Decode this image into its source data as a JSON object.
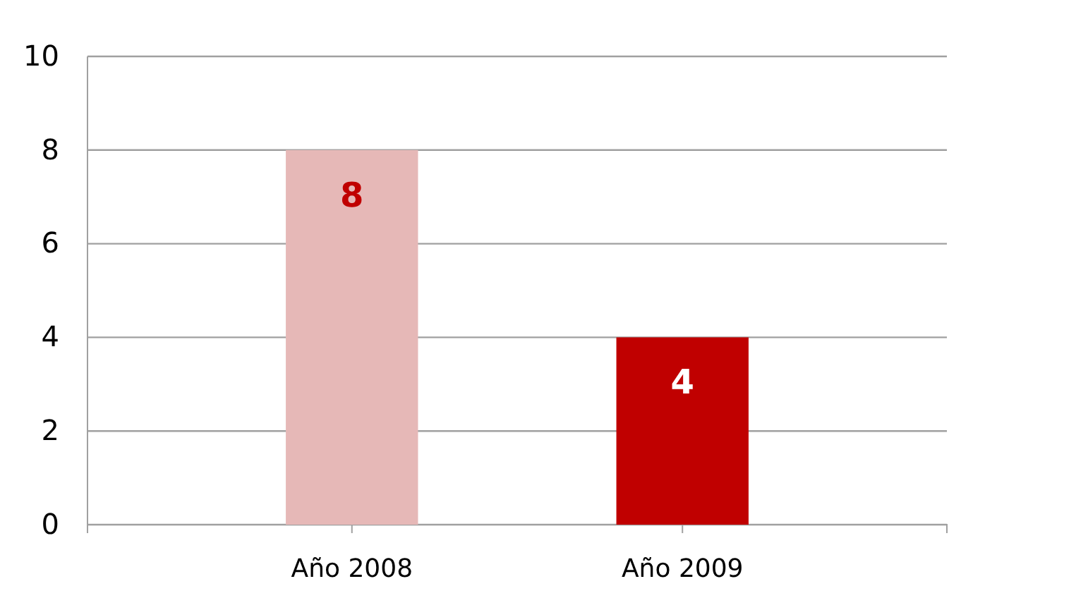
{
  "chart_data": {
    "type": "bar",
    "categories": [
      "Año 2008",
      "Año 2009"
    ],
    "values": [
      8,
      4
    ],
    "colors": [
      "#e6b8b7",
      "#c00000"
    ],
    "ylim": [
      0,
      10
    ],
    "yticks": [
      0,
      2,
      4,
      6,
      8,
      10
    ],
    "grid": "y",
    "data_labels": true
  }
}
